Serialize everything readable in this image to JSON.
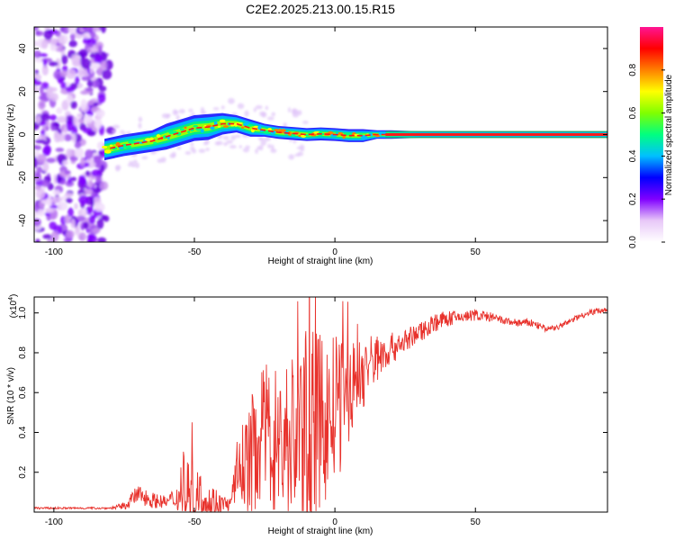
{
  "title": "C2E2.2025.213.00.15.R15",
  "chart_data": [
    {
      "type": "heatmap",
      "xlabel": "Height of straight line (km)",
      "ylabel": "Frequency (Hz)",
      "xlim": [
        -107,
        97
      ],
      "ylim": [
        -50,
        50
      ],
      "xticks": [
        -100,
        -50,
        0,
        50
      ],
      "yticks": [
        -40,
        -20,
        0,
        20,
        40
      ],
      "xtick_labels": [
        "-100",
        "-50",
        "0",
        "50"
      ],
      "ytick_labels": [
        "-40",
        "-20",
        "0",
        "20",
        "40"
      ],
      "colorbar": {
        "label": "Normalized spectral amplitude",
        "range": [
          0,
          1
        ],
        "ticks": [
          0.0,
          0.2,
          0.4,
          0.6,
          0.8
        ],
        "tick_labels": [
          "0.0",
          "0.2",
          "0.4",
          "0.6",
          "0.8"
        ],
        "colors": [
          "#ffffff",
          "#e8c8f8",
          "#8000ff",
          "#0000ff",
          "#00c0ff",
          "#00ff80",
          "#80ff00",
          "#ffff00",
          "#ff8000",
          "#ff0000",
          "#ff1493"
        ]
      },
      "noise_region_x": [
        -107,
        -79
      ],
      "frequency_track": {
        "x": [
          -82,
          -75,
          -70,
          -65,
          -60,
          -55,
          -50,
          -45,
          -40,
          -35,
          -30,
          -25,
          -20,
          -15,
          -10,
          -5,
          0,
          5,
          10,
          15,
          20,
          30,
          40,
          50,
          60,
          70,
          80,
          90,
          97
        ],
        "freq": [
          -7,
          -5,
          -4,
          -3,
          -1,
          1,
          3,
          3.5,
          5,
          5,
          3,
          2,
          1,
          0.5,
          0,
          0.3,
          0,
          -0.5,
          -0.5,
          0,
          0,
          0,
          0,
          0,
          0,
          0,
          0,
          0,
          0
        ],
        "width": [
          5,
          5,
          5,
          5,
          6,
          6,
          6,
          6,
          5,
          4,
          4,
          3,
          3,
          3,
          3,
          3,
          3,
          3,
          3,
          2,
          2,
          1.5,
          1.5,
          1.5,
          1.5,
          1.5,
          1.5,
          1.5,
          1.5
        ]
      }
    },
    {
      "type": "line",
      "xlabel": "Height of straight line (km)",
      "ylabel": "SNR (10 * v/v)",
      "y_multiplier": "(x10",
      "y_exponent": "4",
      "xlim": [
        -107,
        97
      ],
      "ylim": [
        0,
        1.08
      ],
      "xticks": [
        -100,
        -50,
        0,
        50
      ],
      "yticks": [
        0.2,
        0.4,
        0.6,
        0.8,
        1.0
      ],
      "xtick_labels": [
        "-100",
        "-50",
        "0",
        "50"
      ],
      "ytick_labels": [
        "0.2",
        "0.4",
        "0.6",
        "0.8",
        "1.0"
      ],
      "color": "#e8322c",
      "envelope": {
        "x": [
          -107,
          -80,
          -75,
          -70,
          -65,
          -60,
          -55,
          -52,
          -50,
          -45,
          -40,
          -37,
          -35,
          -30,
          -25,
          -20,
          -15,
          -10,
          -5,
          0,
          5,
          10,
          15,
          20,
          25,
          30,
          35,
          40,
          45,
          50,
          55,
          60,
          65,
          70,
          75,
          80,
          85,
          90,
          97
        ],
        "base": [
          0.02,
          0.02,
          0.03,
          0.09,
          0.06,
          0.05,
          0.08,
          0.1,
          0.08,
          0.05,
          0.04,
          0.04,
          0.2,
          0.28,
          0.4,
          0.35,
          0.38,
          0.42,
          0.45,
          0.5,
          0.6,
          0.7,
          0.78,
          0.82,
          0.86,
          0.9,
          0.95,
          0.97,
          0.98,
          0.99,
          0.98,
          0.96,
          0.95,
          0.95,
          0.92,
          0.93,
          0.97,
          1.0,
          1.02
        ],
        "amp": [
          0.005,
          0.005,
          0.02,
          0.05,
          0.04,
          0.03,
          0.08,
          0.2,
          0.15,
          0.12,
          0.05,
          0.03,
          0.15,
          0.3,
          0.35,
          0.4,
          0.45,
          0.5,
          0.45,
          0.4,
          0.25,
          0.2,
          0.12,
          0.08,
          0.06,
          0.05,
          0.05,
          0.04,
          0.03,
          0.03,
          0.025,
          0.02,
          0.02,
          0.02,
          0.015,
          0.015,
          0.015,
          0.015,
          0.015
        ]
      }
    }
  ]
}
